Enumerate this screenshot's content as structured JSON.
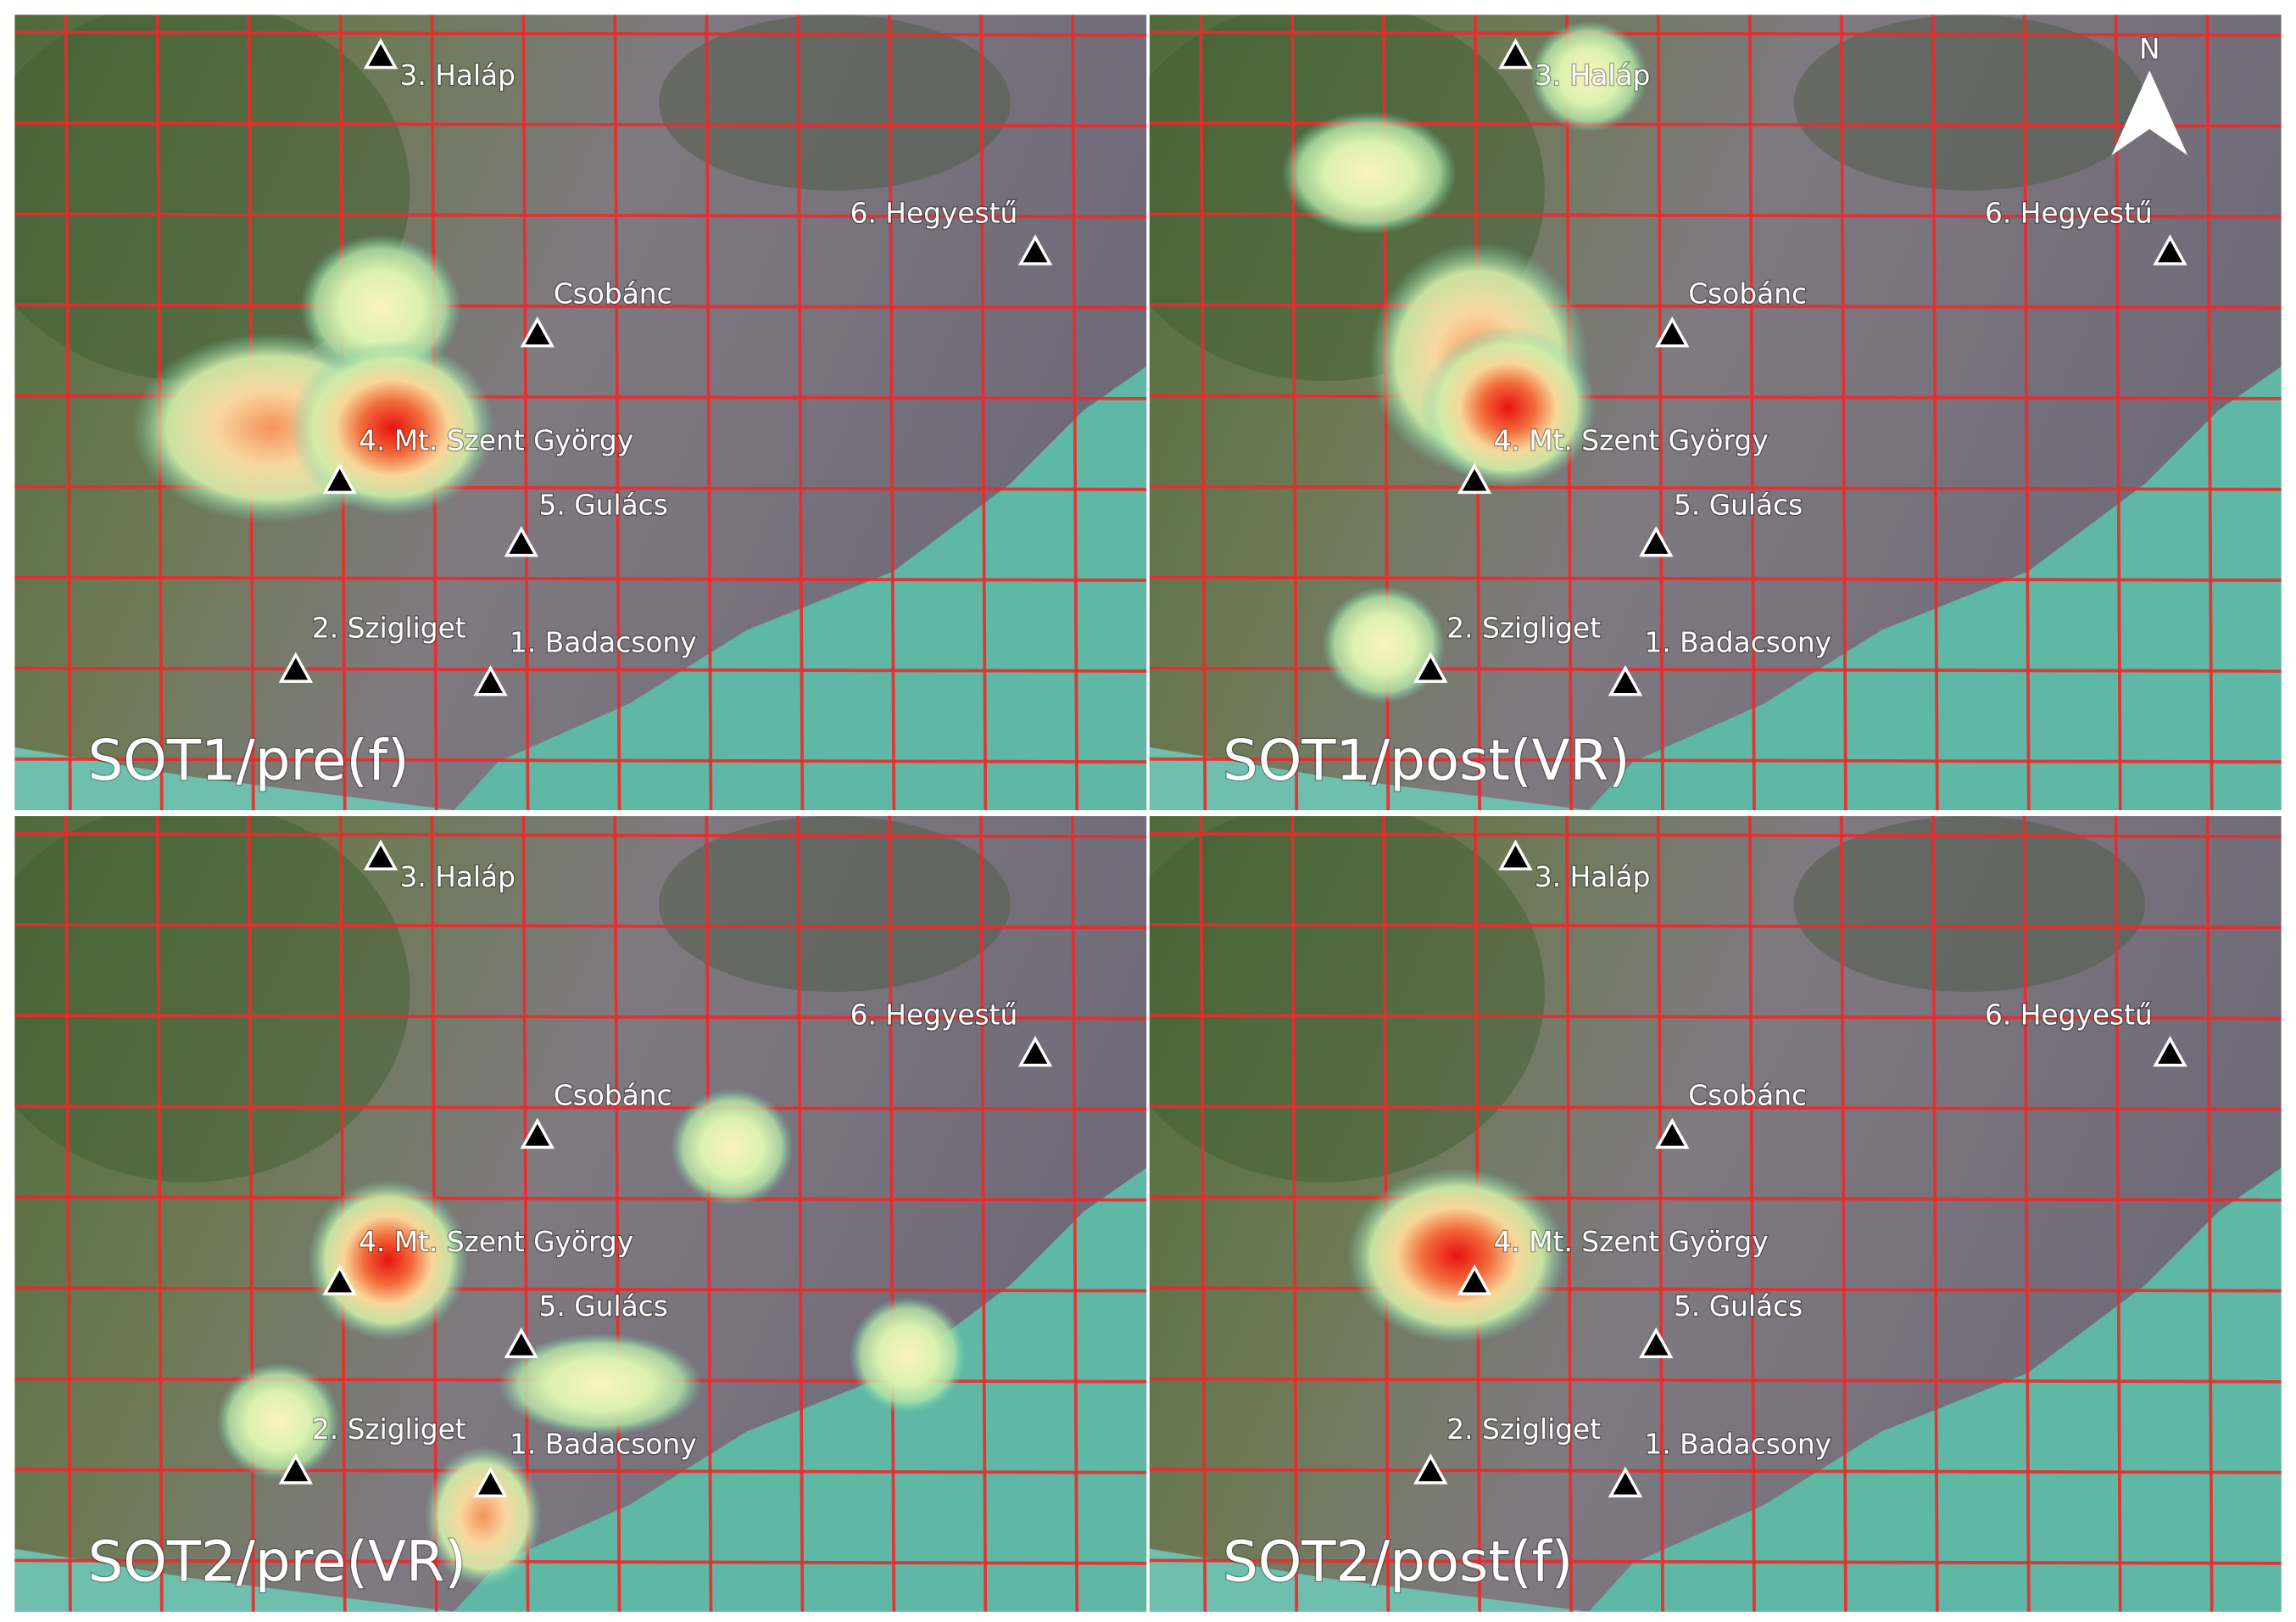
{
  "panels": [
    {
      "title": "SOT1/pre(f)"
    },
    {
      "title": "SOT1/post(VR)"
    },
    {
      "title": "SOT2/pre(VR)"
    },
    {
      "title": "SOT2/post(f)"
    }
  ],
  "landmarks": [
    "3. Haláp",
    "6. Hegyestű",
    "Csobánc",
    "4. Mt. Szent György",
    "5. Gulács",
    "2. Szigliget",
    "1. Badacsony"
  ],
  "north": "N"
}
